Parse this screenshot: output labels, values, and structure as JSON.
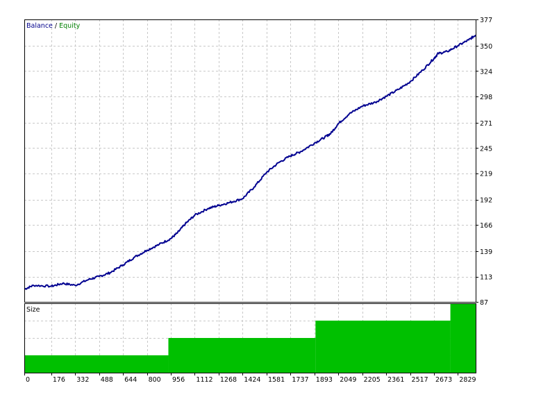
{
  "chart_data": [
    {
      "type": "line",
      "title": "",
      "legend": {
        "placement": "top-left",
        "entries": [
          "Balance",
          "/",
          "Equity"
        ]
      },
      "legend_colors": {
        "Balance": "#00008b",
        "separator": "#000000",
        "Equity": "#008000"
      },
      "series": [
        {
          "name": "Balance",
          "color": "#000090",
          "x": [
            0,
            60,
            176,
            250,
            332,
            420,
            488,
            560,
            644,
            720,
            800,
            880,
            956,
            1000,
            1050,
            1112,
            1200,
            1268,
            1340,
            1424,
            1500,
            1581,
            1660,
            1737,
            1800,
            1893,
            1960,
            2000,
            2049,
            2120,
            2205,
            2290,
            2361,
            2440,
            2517,
            2600,
            2673,
            2700,
            2760,
            2829,
            2900,
            2945
          ],
          "y": [
            100,
            104,
            103,
            106,
            104,
            110,
            113,
            117,
            125,
            133,
            140,
            146,
            152,
            158,
            167,
            176,
            183,
            186,
            189,
            193,
            205,
            220,
            230,
            237,
            241,
            250,
            256,
            260,
            270,
            280,
            288,
            292,
            298,
            305,
            313,
            325,
            337,
            342,
            344,
            350,
            356,
            361
          ]
        }
      ],
      "y_ticks": [
        87,
        113,
        139,
        166,
        192,
        219,
        245,
        271,
        298,
        324,
        350,
        377
      ],
      "ylim": [
        87,
        377
      ],
      "xlim": [
        0,
        2945
      ],
      "grid": true
    },
    {
      "type": "area",
      "title": "Size",
      "color": "#00c000",
      "steps": [
        {
          "x_start": 0,
          "x_end": 940,
          "value": 1
        },
        {
          "x_start": 940,
          "x_end": 1900,
          "value": 2
        },
        {
          "x_start": 1900,
          "x_end": 2780,
          "value": 3
        },
        {
          "x_start": 2780,
          "x_end": 2945,
          "value": 4
        }
      ],
      "ylim": [
        0,
        4
      ],
      "x_ticks": [
        0,
        176,
        332,
        488,
        644,
        800,
        956,
        1112,
        1268,
        1424,
        1581,
        1737,
        1893,
        2049,
        2205,
        2361,
        2517,
        2673,
        2829
      ],
      "grid": true
    }
  ]
}
